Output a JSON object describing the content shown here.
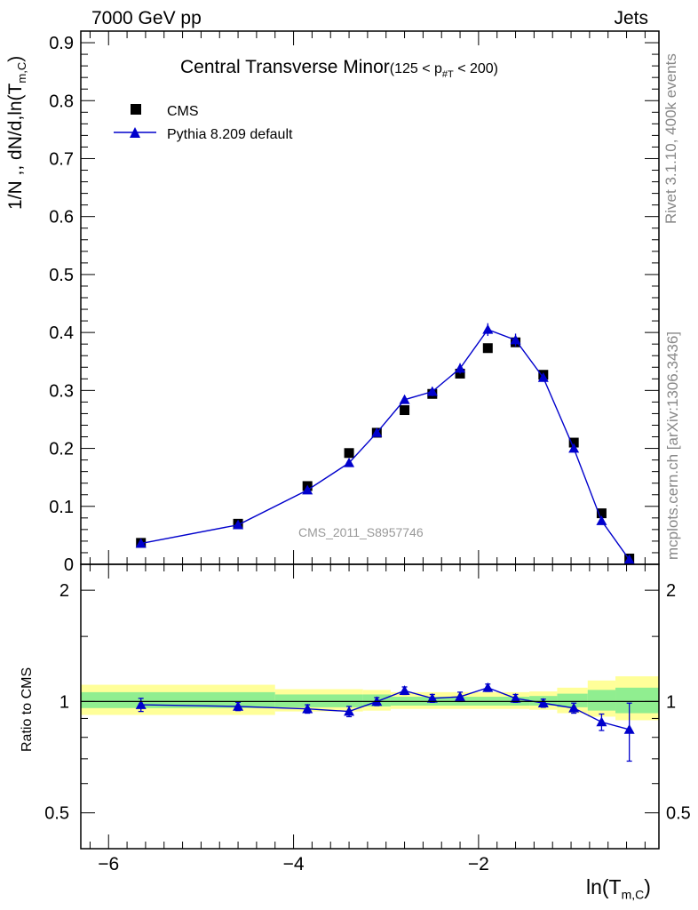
{
  "header": {
    "left": "7000 GeV pp",
    "right": "Jets"
  },
  "side_labels": {
    "top": "Rivet 3.1.10,  400k events",
    "bottom": "mcplots.cern.ch [arXiv:1306.3436]"
  },
  "chart_data": {
    "type": "scatter",
    "title": "Central Transverse Minor",
    "title_suffix": "(125 < p",
    "title_sub": "#T",
    "title_end": " < 200)",
    "analysis_label": "CMS_2011_S8957746",
    "xlabel_main": "ln(T",
    "xlabel_sub": "m,C",
    "xlabel_end": ")",
    "ylabel": "1/N ,, dN/d,ln(T",
    "ylabel_sub": "m,C",
    "ylabel_end": ")",
    "ratio_ylabel": "Ratio to CMS",
    "xlim": [
      -6.3,
      -0.05
    ],
    "ylim": [
      0,
      0.92
    ],
    "ratio_ylim": [
      0.4,
      2.35
    ],
    "ratio_log_scale": true,
    "x_ticks": [
      -6,
      -4,
      -2
    ],
    "x_tick_labels": [
      "−6",
      "−4",
      "−2"
    ],
    "y_ticks": [
      0,
      0.1,
      0.2,
      0.3,
      0.4,
      0.5,
      0.6,
      0.7,
      0.8,
      0.9
    ],
    "y_tick_labels": [
      "0",
      "0.1",
      "0.2",
      "0.3",
      "0.4",
      "0.5",
      "0.6",
      "0.7",
      "0.8",
      "0.9"
    ],
    "ratio_ticks": [
      0.5,
      1,
      2
    ],
    "ratio_tick_labels": [
      "0.5",
      "1",
      "2"
    ],
    "legend_position": "top-left",
    "series": [
      {
        "name": "CMS",
        "marker": "square",
        "color": "#000000",
        "x": [
          -5.65,
          -4.6,
          -3.85,
          -3.4,
          -3.1,
          -2.8,
          -2.5,
          -2.2,
          -1.9,
          -1.6,
          -1.3,
          -0.97,
          -0.67,
          -0.37
        ],
        "y": [
          0.037,
          0.07,
          0.135,
          0.192,
          0.227,
          0.266,
          0.294,
          0.329,
          0.373,
          0.383,
          0.327,
          0.21,
          0.088,
          0.01
        ]
      },
      {
        "name": "Pythia 8.209 default",
        "marker": "triangle",
        "color": "#0000cc",
        "x": [
          -5.65,
          -4.6,
          -3.85,
          -3.4,
          -3.1,
          -2.8,
          -2.5,
          -2.2,
          -1.9,
          -1.6,
          -1.3,
          -0.97,
          -0.67,
          -0.37
        ],
        "y": [
          0.036,
          0.068,
          0.128,
          0.175,
          0.227,
          0.284,
          0.298,
          0.338,
          0.405,
          0.387,
          0.322,
          0.2,
          0.075,
          0.008
        ],
        "yerr": [
          0.002,
          0.002,
          0.004,
          0.004,
          0.005,
          0.007,
          0.008,
          0.009,
          0.011,
          0.011,
          0.007,
          0.005,
          0.003,
          0.002
        ],
        "ratio": [
          0.98,
          0.97,
          0.955,
          0.94,
          1.0,
          1.07,
          1.02,
          1.03,
          1.09,
          1.02,
          0.99,
          0.96,
          0.88,
          0.84
        ],
        "ratio_err": [
          0.04,
          0.025,
          0.025,
          0.03,
          0.025,
          0.025,
          0.025,
          0.03,
          0.025,
          0.025,
          0.025,
          0.03,
          0.045,
          0.15
        ]
      }
    ],
    "ratio_bands": [
      {
        "x0": -6.3,
        "x1": -4.2,
        "stat_lo": 0.96,
        "stat_hi": 1.06,
        "tot_lo": 0.92,
        "tot_hi": 1.11
      },
      {
        "x0": -4.2,
        "x1": -3.25,
        "stat_lo": 0.965,
        "stat_hi": 1.045,
        "tot_lo": 0.94,
        "tot_hi": 1.08
      },
      {
        "x0": -3.25,
        "x1": -2.95,
        "stat_lo": 0.97,
        "stat_hi": 1.045,
        "tot_lo": 0.945,
        "tot_hi": 1.075
      },
      {
        "x0": -2.95,
        "x1": -1.45,
        "stat_lo": 0.975,
        "stat_hi": 1.03,
        "tot_lo": 0.955,
        "tot_hi": 1.06
      },
      {
        "x0": -1.45,
        "x1": -1.15,
        "stat_lo": 0.975,
        "stat_hi": 1.035,
        "tot_lo": 0.95,
        "tot_hi": 1.065
      },
      {
        "x0": -1.15,
        "x1": -0.82,
        "stat_lo": 0.965,
        "stat_hi": 1.05,
        "tot_lo": 0.93,
        "tot_hi": 1.09
      },
      {
        "x0": -0.82,
        "x1": -0.52,
        "stat_lo": 0.945,
        "stat_hi": 1.075,
        "tot_lo": 0.91,
        "tot_hi": 1.14
      },
      {
        "x0": -0.52,
        "x1": -0.05,
        "stat_lo": 0.93,
        "stat_hi": 1.09,
        "tot_lo": 0.89,
        "tot_hi": 1.17
      }
    ],
    "band_colors": {
      "stat": "#90ee90",
      "total": "#ffff99"
    }
  }
}
